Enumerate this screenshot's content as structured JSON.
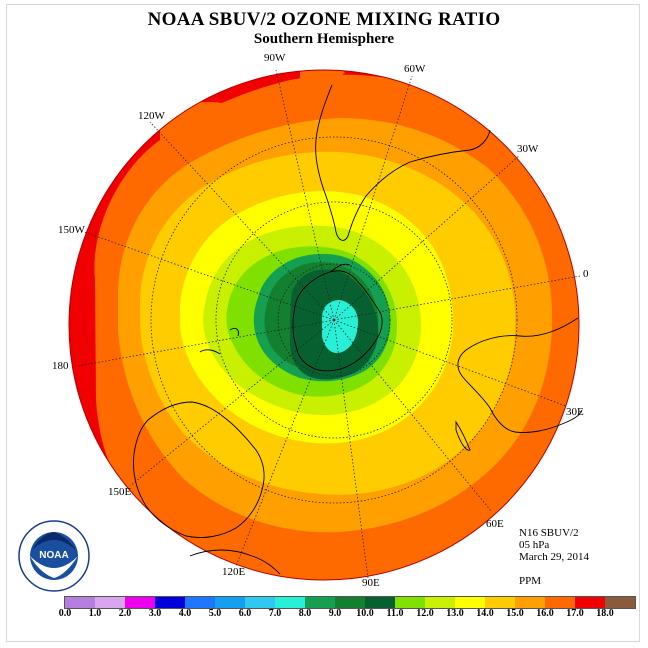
{
  "header": {
    "title": "NOAA SBUV/2 OZONE MIXING RATIO",
    "subtitle": "Southern Hemisphere"
  },
  "info": {
    "instrument": "N16 SBUV/2",
    "level": "05 hPa",
    "date": "March 29, 2014",
    "units": "PPM"
  },
  "longitude_labels": {
    "w90": "90W",
    "w60": "60W",
    "w30": "30W",
    "e0": "0",
    "w120": "120W",
    "w150": "150W",
    "e180": "180",
    "e30": "30E",
    "e60": "60E",
    "e90": "90E",
    "e120": "120E",
    "e150": "150E"
  },
  "colorbar": {
    "colors": [
      "#b57fe0",
      "#d9a6ee",
      "#ee00ee",
      "#0000dd",
      "#1e78ff",
      "#14a0f0",
      "#2ec8f0",
      "#28f0d6",
      "#14a050",
      "#13802f",
      "#066030",
      "#80e000",
      "#c8f000",
      "#ffff00",
      "#ffcc00",
      "#ffa000",
      "#ff6a00",
      "#f00000",
      "#8a5a3c"
    ],
    "ticks": [
      "0.0",
      "1.0",
      "2.0",
      "3.0",
      "4.0",
      "5.0",
      "6.0",
      "7.0",
      "8.0",
      "9.0",
      "10.0",
      "11.0",
      "12.0",
      "13.0",
      "14.0",
      "15.0",
      "16.0",
      "17.0",
      "18.0"
    ]
  },
  "logo": {
    "text": "NOAA"
  }
}
